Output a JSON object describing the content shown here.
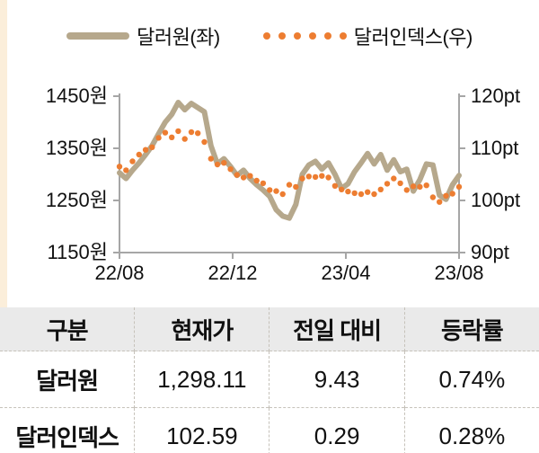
{
  "colors": {
    "usdkrw_line": "#b6a88c",
    "dxy_dots": "#ed7d31",
    "axis": "#a6a6a6",
    "tick_text": "#111111",
    "accent_strip": "#fbeeda",
    "table_header_bg": "#eaeaea"
  },
  "legend": {
    "items": [
      {
        "label": "달러원(좌)",
        "swatch": "line",
        "color": "#b6a88c"
      },
      {
        "label": "달러인덱스(우)",
        "swatch": "dots",
        "color": "#ed7d31"
      }
    ]
  },
  "chart_data": {
    "type": "line",
    "title": "",
    "x_tick_labels": [
      "22/08",
      "22/12",
      "23/04",
      "23/08"
    ],
    "left_axis": {
      "min": 1150,
      "max": 1450,
      "tick_values": [
        1450,
        1350,
        1250,
        1150
      ],
      "tick_labels": [
        "1450원",
        "1350원",
        "1250원",
        "1150원"
      ]
    },
    "right_axis": {
      "min": 90,
      "max": 120,
      "tick_values": [
        120,
        110,
        100,
        90
      ],
      "tick_labels": [
        "120pt",
        "110pt",
        "100pt",
        "90pt"
      ]
    },
    "grid": false,
    "legend_position": "top",
    "series": [
      {
        "name": "달러원(좌)",
        "axis": "left",
        "style": "solid",
        "values": [
          1303,
          1292,
          1308,
          1322,
          1338,
          1355,
          1378,
          1400,
          1415,
          1438,
          1424,
          1436,
          1428,
          1420,
          1355,
          1320,
          1330,
          1315,
          1298,
          1308,
          1292,
          1280,
          1270,
          1258,
          1232,
          1220,
          1216,
          1242,
          1300,
          1318,
          1325,
          1310,
          1322,
          1300,
          1273,
          1282,
          1305,
          1322,
          1340,
          1320,
          1338,
          1308,
          1328,
          1305,
          1310,
          1268,
          1290,
          1320,
          1318,
          1260,
          1252,
          1280,
          1298
        ]
      },
      {
        "name": "달러인덱스(우)",
        "axis": "right",
        "style": "dotted",
        "values": [
          106.5,
          105.8,
          107.5,
          108.8,
          109.7,
          110.2,
          112.0,
          113.0,
          112.1,
          113.3,
          111.8,
          113.1,
          112.9,
          111.2,
          108.0,
          106.9,
          107.2,
          106.0,
          104.9,
          104.4,
          104.7,
          103.8,
          103.3,
          102.0,
          101.8,
          101.2,
          103.0,
          102.6,
          104.2,
          104.6,
          104.5,
          104.7,
          104.4,
          102.8,
          102.1,
          101.7,
          101.4,
          101.2,
          101.6,
          101.2,
          102.1,
          103.2,
          104.2,
          103.3,
          102.0,
          102.7,
          102.6,
          102.9,
          100.6,
          99.7,
          100.9,
          101.3,
          102.6
        ]
      }
    ]
  },
  "table": {
    "headers": [
      "구분",
      "현재가",
      "전일 대비",
      "등락률"
    ],
    "rows": [
      {
        "label": "달러원",
        "values": [
          "1,298.11",
          "9.43",
          "0.74%"
        ]
      },
      {
        "label": "달러인덱스",
        "values": [
          "102.59",
          "0.29",
          "0.28%"
        ]
      }
    ]
  }
}
